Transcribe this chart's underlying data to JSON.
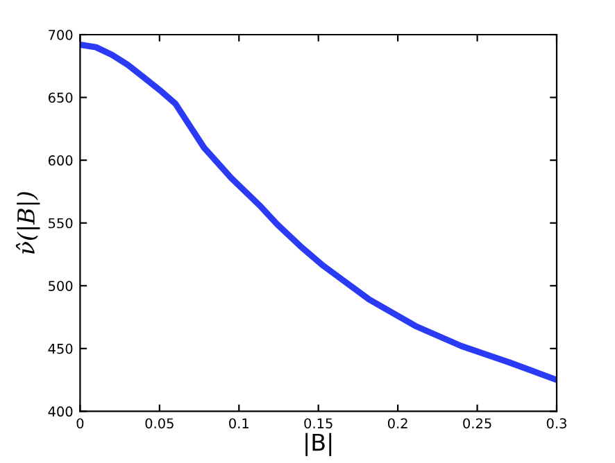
{
  "chart_data": {
    "type": "line",
    "xlabel": "|B|",
    "ylabel": "ν̂(|B|)",
    "xlim": [
      0,
      0.3
    ],
    "ylim": [
      400,
      700
    ],
    "xticks": [
      0,
      0.05,
      0.1,
      0.15,
      0.2,
      0.25,
      0.3
    ],
    "yticks": [
      400,
      450,
      500,
      550,
      600,
      650,
      700
    ],
    "grid": false,
    "line_style": "solid",
    "series": [
      {
        "color": "#2a3af5",
        "x": [
          0,
          0.01,
          0.02,
          0.03,
          0.04,
          0.05,
          0.06,
          0.078,
          0.095,
          0.113,
          0.124,
          0.14,
          0.153,
          0.182,
          0.211,
          0.24,
          0.27,
          0.3
        ],
        "values": [
          692,
          690,
          684,
          676,
          666,
          656,
          645,
          610,
          586,
          564,
          549,
          530,
          516,
          489,
          468,
          452,
          439,
          425
        ]
      }
    ]
  }
}
